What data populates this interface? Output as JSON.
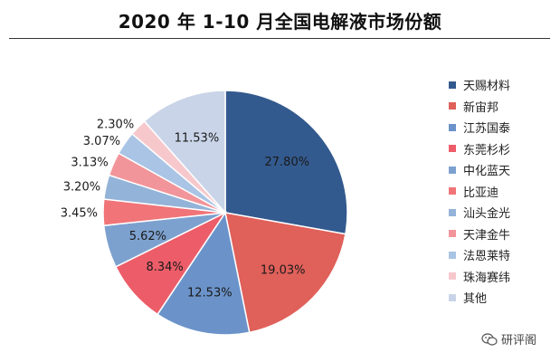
{
  "title": "2020 年 1-10 月全国电解液市场份额",
  "watermark": "研评阁",
  "chart_data": {
    "type": "pie",
    "title": "2020 年 1-10 月全国电解液市场份额",
    "legend_position": "right",
    "start_angle_deg": 0,
    "direction": "clockwise",
    "slices": [
      {
        "name": "天赐材料",
        "value": 27.8,
        "label": "27.80%",
        "color": "#335a8e"
      },
      {
        "name": "新宙邦",
        "value": 19.03,
        "label": "19.03%",
        "color": "#e0605a"
      },
      {
        "name": "江苏国泰",
        "value": 12.53,
        "label": "12.53%",
        "color": "#6b93c9"
      },
      {
        "name": "东莞杉杉",
        "value": 8.34,
        "label": "8.34%",
        "color": "#ed5d69"
      },
      {
        "name": "中化蓝天",
        "value": 5.62,
        "label": "5.62%",
        "color": "#7da1cf"
      },
      {
        "name": "比亚迪",
        "value": 3.45,
        "label": "3.45%",
        "color": "#f07478"
      },
      {
        "name": "汕头金光",
        "value": 3.2,
        "label": "3.20%",
        "color": "#94b3d8"
      },
      {
        "name": "天津金牛",
        "value": 3.13,
        "label": "3.13%",
        "color": "#f2959a"
      },
      {
        "name": "法恩莱特",
        "value": 3.07,
        "label": "3.07%",
        "color": "#a9c4e4"
      },
      {
        "name": "珠海赛纬",
        "value": 2.3,
        "label": "2.30%",
        "color": "#f6c8cc"
      },
      {
        "name": "其他",
        "value": 11.53,
        "label": "11.53%",
        "color": "#c9d4e8"
      }
    ]
  }
}
